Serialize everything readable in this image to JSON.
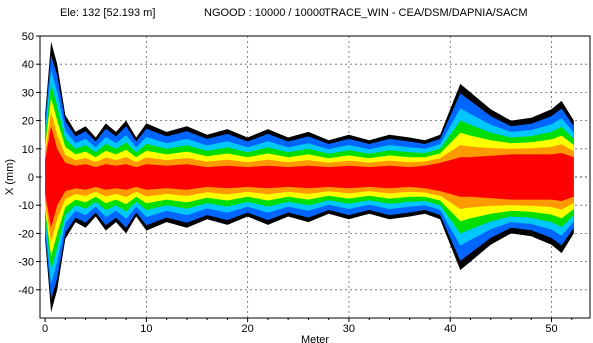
{
  "header": {
    "element": "Ele: 132 [52.193 m]",
    "ngood": "NGOOD : 10000 / 10000",
    "program": "TRACE_WIN - CEA/DSM/DAPNIA/SACM"
  },
  "chart_data": {
    "type": "area",
    "title": "",
    "xlabel": "Meter",
    "ylabel": "X (mm)",
    "xlim": [
      -0.5,
      53.8
    ],
    "ylim": [
      -50,
      50
    ],
    "xticks": [
      0,
      10,
      20,
      30,
      40,
      50
    ],
    "yticks": [
      50,
      40,
      30,
      20,
      10,
      0,
      -10,
      -20,
      -30,
      -40
    ],
    "grid": true,
    "density_colors": [
      "#000000",
      "#0066ff",
      "#00c8ff",
      "#00dd00",
      "#ffff00",
      "#ff9900",
      "#ff0000"
    ],
    "envelope_points": {
      "x": [
        0,
        0.6,
        1.2,
        2,
        3,
        4,
        5,
        6,
        7,
        8,
        9,
        10,
        12,
        14,
        16,
        18,
        20,
        22,
        24,
        26,
        28,
        30,
        32,
        34,
        36,
        37.5,
        39,
        40,
        41,
        42,
        44,
        46,
        48,
        50,
        51,
        52.2
      ],
      "outer_half_width_mm": [
        22,
        48,
        40,
        22,
        16,
        18,
        14,
        19,
        16,
        20,
        14,
        19,
        16,
        18,
        15,
        17,
        14,
        17,
        14,
        16,
        13,
        15,
        13,
        15,
        14,
        13,
        15,
        24,
        33,
        30,
        24,
        20,
        21,
        24,
        27,
        20
      ],
      "core_half_width_mm": [
        6,
        18,
        10,
        5,
        4,
        4.5,
        3.5,
        4.5,
        4,
        4.5,
        3.5,
        4.5,
        4,
        4.5,
        3.5,
        4,
        3.5,
        4,
        3.5,
        4,
        3.5,
        4,
        3.5,
        4,
        3.5,
        4,
        5,
        6,
        7,
        7,
        7.5,
        8,
        8,
        8,
        8.5,
        7
      ]
    }
  }
}
